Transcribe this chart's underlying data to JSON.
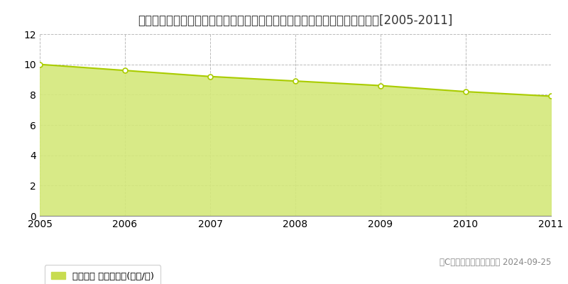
{
  "title": "長野県南佐久郡佐久穂町大字平林字羽黒下１０１番６　基準地価　地価推移[2005-2011]",
  "years": [
    2005,
    2006,
    2007,
    2008,
    2009,
    2010,
    2011
  ],
  "values": [
    10.0,
    9.6,
    9.2,
    8.9,
    8.6,
    8.2,
    7.9
  ],
  "ylim": [
    0,
    12
  ],
  "yticks": [
    0,
    2,
    4,
    6,
    8,
    10,
    12
  ],
  "line_color": "#aacc00",
  "fill_color": "#d4e87a",
  "fill_alpha": 0.9,
  "marker_color": "white",
  "marker_edge_color": "#aacc00",
  "bg_color": "#ffffff",
  "plot_bg_color": "#ffffff",
  "grid_color": "#bbbbbb",
  "legend_label": "基準地価 平均坤単価(万円/坤)",
  "legend_box_color": "#c8dc50",
  "copyright_text": "（C）土地価格ドットコム 2024-09-25",
  "title_fontsize": 12,
  "axis_fontsize": 10,
  "legend_fontsize": 9.5,
  "copyright_fontsize": 8.5
}
